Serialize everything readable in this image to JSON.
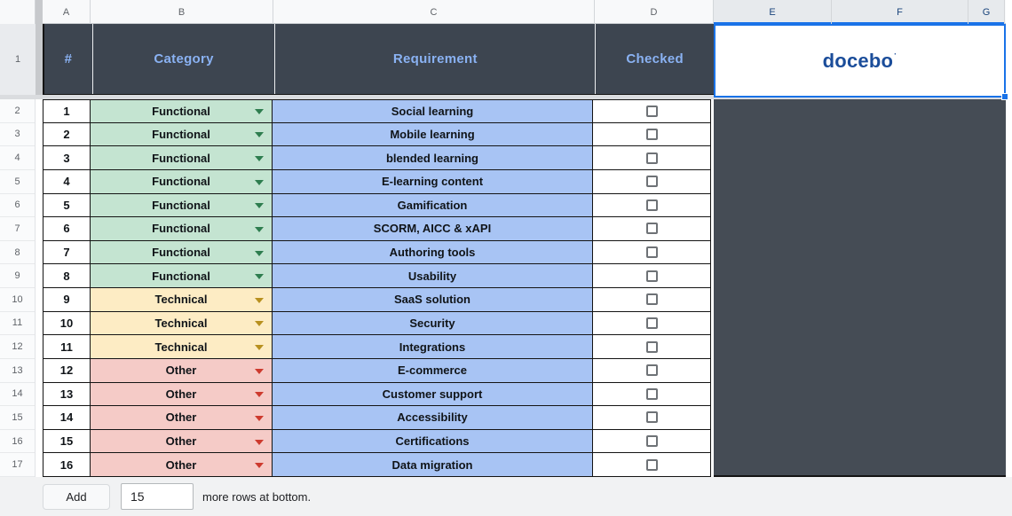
{
  "sheet": {
    "column_headers": [
      "A",
      "B",
      "C",
      "D",
      "E",
      "F",
      "G"
    ],
    "row_numbers": [
      "1",
      "2",
      "3",
      "4",
      "5",
      "6",
      "7",
      "8",
      "9",
      "10",
      "11",
      "12",
      "13",
      "14",
      "15",
      "16",
      "17"
    ]
  },
  "table": {
    "headers": [
      "#",
      "Category",
      "Requirement",
      "Checked"
    ],
    "logo_text": "docebo",
    "logo_mark": "·",
    "rows": [
      {
        "num": "1",
        "category": "Functional",
        "requirement": "Social learning",
        "checked": false
      },
      {
        "num": "2",
        "category": "Functional",
        "requirement": "Mobile learning",
        "checked": false
      },
      {
        "num": "3",
        "category": "Functional",
        "requirement": "blended learning",
        "checked": false
      },
      {
        "num": "4",
        "category": "Functional",
        "requirement": "E-learning content",
        "checked": false
      },
      {
        "num": "5",
        "category": "Functional",
        "requirement": "Gamification",
        "checked": false
      },
      {
        "num": "6",
        "category": "Functional",
        "requirement": "SCORM, AICC & xAPI",
        "checked": false
      },
      {
        "num": "7",
        "category": "Functional",
        "requirement": "Authoring tools",
        "checked": false
      },
      {
        "num": "8",
        "category": "Functional",
        "requirement": "Usability",
        "checked": false
      },
      {
        "num": "9",
        "category": "Technical",
        "requirement": "SaaS solution",
        "checked": false
      },
      {
        "num": "10",
        "category": "Technical",
        "requirement": "Security",
        "checked": false
      },
      {
        "num": "11",
        "category": "Technical",
        "requirement": "Integrations",
        "checked": false
      },
      {
        "num": "12",
        "category": "Other",
        "requirement": "E-commerce",
        "checked": false
      },
      {
        "num": "13",
        "category": "Other",
        "requirement": "Customer support",
        "checked": false
      },
      {
        "num": "14",
        "category": "Other",
        "requirement": "Accessibility",
        "checked": false
      },
      {
        "num": "15",
        "category": "Other",
        "requirement": "Certifications",
        "checked": false
      },
      {
        "num": "16",
        "category": "Other",
        "requirement": "Data migration",
        "checked": false
      }
    ]
  },
  "category_styles": {
    "Functional": {
      "bg": "#c4e4d1",
      "arrow": "#2e7d4f"
    },
    "Technical": {
      "bg": "#fdecc4",
      "arrow": "#b8901f"
    },
    "Other": {
      "bg": "#f5cbc7",
      "arrow": "#cd3a2e"
    }
  },
  "colors": {
    "header_bg": "#3d4550",
    "header_text": "#8ab2f3",
    "requirement_bg": "#a8c4f4",
    "selection_blue": "#1a73e8",
    "logo_blue": "#1b4d9a",
    "dark_region": "#454c55"
  },
  "footer": {
    "add_label": "Add",
    "rows_value": "15",
    "suffix_label": "more rows at bottom."
  }
}
